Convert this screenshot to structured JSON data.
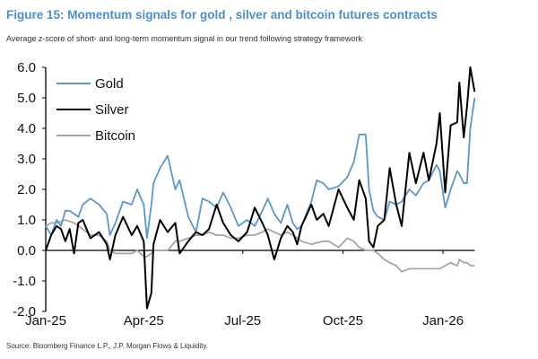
{
  "title": "Figure 15: Momentum signals for gold , silver and bitcoin futures contracts",
  "subtitle": "Average z-score of short- and long-term momentum signal in our trend following strategy framework",
  "source": "Source: Bloomberg Finance L.P., J.P. Morgan Flows & Liquidity.",
  "chart_data": {
    "type": "line",
    "title": "Figure 15: Momentum signals for gold , silver and bitcoin futures contracts",
    "xlabel": "",
    "ylabel": "",
    "ylim": [
      -2.0,
      6.0
    ],
    "yticks": [
      "6.0",
      "5.0",
      "4.0",
      "3.0",
      "2.0",
      "1.0",
      "0.0",
      "-1.0",
      "-2.0"
    ],
    "ytick_values": [
      6,
      5,
      4,
      3,
      2,
      1,
      0,
      -1,
      -2
    ],
    "xtick_labels": [
      "Jan-25",
      "Apr-25",
      "Jul-25",
      "Oct-25",
      "Jan-26"
    ],
    "xtick_dates": [
      "2025-01-01",
      "2025-04-01",
      "2025-07-01",
      "2025-10-01",
      "2026-01-01"
    ],
    "xlim": [
      "2025-01-01",
      "2026-01-30"
    ],
    "grid": false,
    "legend_position": "top-left",
    "x": [
      "2025-01-01",
      "2025-01-06",
      "2025-01-11",
      "2025-01-15",
      "2025-01-19",
      "2025-01-23",
      "2025-01-27",
      "2025-01-31",
      "2025-02-04",
      "2025-02-11",
      "2025-02-19",
      "2025-02-26",
      "2025-03-01",
      "2025-03-06",
      "2025-03-13",
      "2025-03-21",
      "2025-03-26",
      "2025-04-01",
      "2025-04-04",
      "2025-04-08",
      "2025-04-10",
      "2025-04-16",
      "2025-04-23",
      "2025-04-30",
      "2025-05-04",
      "2025-05-12",
      "2025-05-19",
      "2025-05-25",
      "2025-05-31",
      "2025-06-07",
      "2025-06-13",
      "2025-06-20",
      "2025-06-27",
      "2025-07-05",
      "2025-07-12",
      "2025-07-19",
      "2025-07-24",
      "2025-07-30",
      "2025-08-05",
      "2025-08-11",
      "2025-08-16",
      "2025-08-20",
      "2025-08-24",
      "2025-09-02",
      "2025-09-07",
      "2025-09-13",
      "2025-09-18",
      "2025-09-27",
      "2025-10-05",
      "2025-10-11",
      "2025-10-16",
      "2025-10-22",
      "2025-10-25",
      "2025-10-29",
      "2025-11-02",
      "2025-11-08",
      "2025-11-13",
      "2025-11-19",
      "2025-11-24",
      "2025-12-01",
      "2025-12-07",
      "2025-12-14",
      "2025-12-19",
      "2025-12-26",
      "2025-12-29",
      "2026-01-03",
      "2026-01-08",
      "2026-01-14",
      "2026-01-16",
      "2026-01-20",
      "2026-01-23",
      "2026-01-26",
      "2026-01-30"
    ],
    "series": [
      {
        "name": "Gold",
        "color": "#5a96cf",
        "values": [
          0.8,
          0.5,
          1.0,
          0.8,
          1.3,
          1.3,
          1.2,
          1.1,
          1.5,
          1.7,
          1.5,
          1.2,
          0.5,
          0.9,
          1.6,
          1.5,
          2.0,
          1.5,
          0.4,
          1.5,
          2.2,
          2.7,
          3.1,
          2.0,
          2.3,
          1.1,
          0.6,
          1.7,
          1.6,
          1.4,
          1.9,
          1.4,
          0.8,
          1.0,
          0.8,
          1.3,
          1.7,
          1.2,
          0.9,
          1.5,
          0.9,
          0.7,
          0.8,
          1.6,
          2.3,
          2.2,
          2.0,
          2.1,
          2.4,
          2.9,
          3.8,
          3.8,
          2.0,
          1.3,
          1.1,
          1.0,
          1.6,
          1.5,
          1.6,
          2.0,
          1.8,
          2.2,
          2.3,
          2.8,
          2.6,
          1.4,
          2.0,
          2.6,
          2.5,
          2.2,
          2.2,
          4.0,
          5.0
        ]
      },
      {
        "name": "Silver",
        "color": "#000000",
        "values": [
          0.0,
          0.5,
          0.8,
          0.7,
          0.3,
          0.7,
          -0.1,
          0.9,
          1.0,
          0.4,
          0.6,
          0.2,
          -0.3,
          0.5,
          1.1,
          0.5,
          0.8,
          0.3,
          -1.9,
          -1.4,
          0.2,
          1.0,
          0.6,
          0.9,
          -0.1,
          0.3,
          0.6,
          0.5,
          0.7,
          1.5,
          0.9,
          0.5,
          0.3,
          0.6,
          1.4,
          0.9,
          0.5,
          -0.3,
          0.4,
          0.8,
          0.6,
          0.2,
          0.8,
          1.5,
          1.0,
          1.2,
          0.8,
          2.0,
          1.4,
          1.0,
          2.3,
          1.7,
          0.3,
          0.1,
          0.8,
          1.0,
          2.7,
          1.5,
          0.8,
          3.2,
          2.2,
          3.2,
          2.3,
          3.5,
          4.5,
          1.9,
          4.1,
          4.2,
          5.5,
          3.7,
          4.7,
          6.0,
          5.2
        ]
      },
      {
        "name": "Bitcoin",
        "color": "#a6a6a6",
        "values": [
          0.8,
          0.9,
          0.9,
          0.95,
          1.0,
          0.95,
          0.9,
          0.8,
          0.7,
          0.5,
          0.5,
          0.3,
          0.0,
          -0.1,
          -0.1,
          -0.1,
          0.0,
          -0.2,
          -0.2,
          -0.1,
          0.0,
          0.0,
          0.0,
          0.3,
          0.3,
          0.4,
          0.5,
          0.5,
          0.6,
          0.5,
          0.5,
          0.4,
          0.4,
          0.5,
          0.5,
          0.6,
          0.7,
          0.6,
          0.5,
          0.6,
          0.5,
          0.4,
          0.3,
          0.2,
          0.25,
          0.3,
          0.3,
          0.1,
          0.4,
          0.3,
          0.1,
          0.0,
          0.0,
          0.0,
          -0.1,
          -0.3,
          -0.4,
          -0.5,
          -0.7,
          -0.6,
          -0.6,
          -0.6,
          -0.6,
          -0.6,
          -0.6,
          -0.5,
          -0.4,
          -0.5,
          -0.3,
          -0.4,
          -0.4,
          -0.5,
          -0.5
        ]
      }
    ]
  }
}
